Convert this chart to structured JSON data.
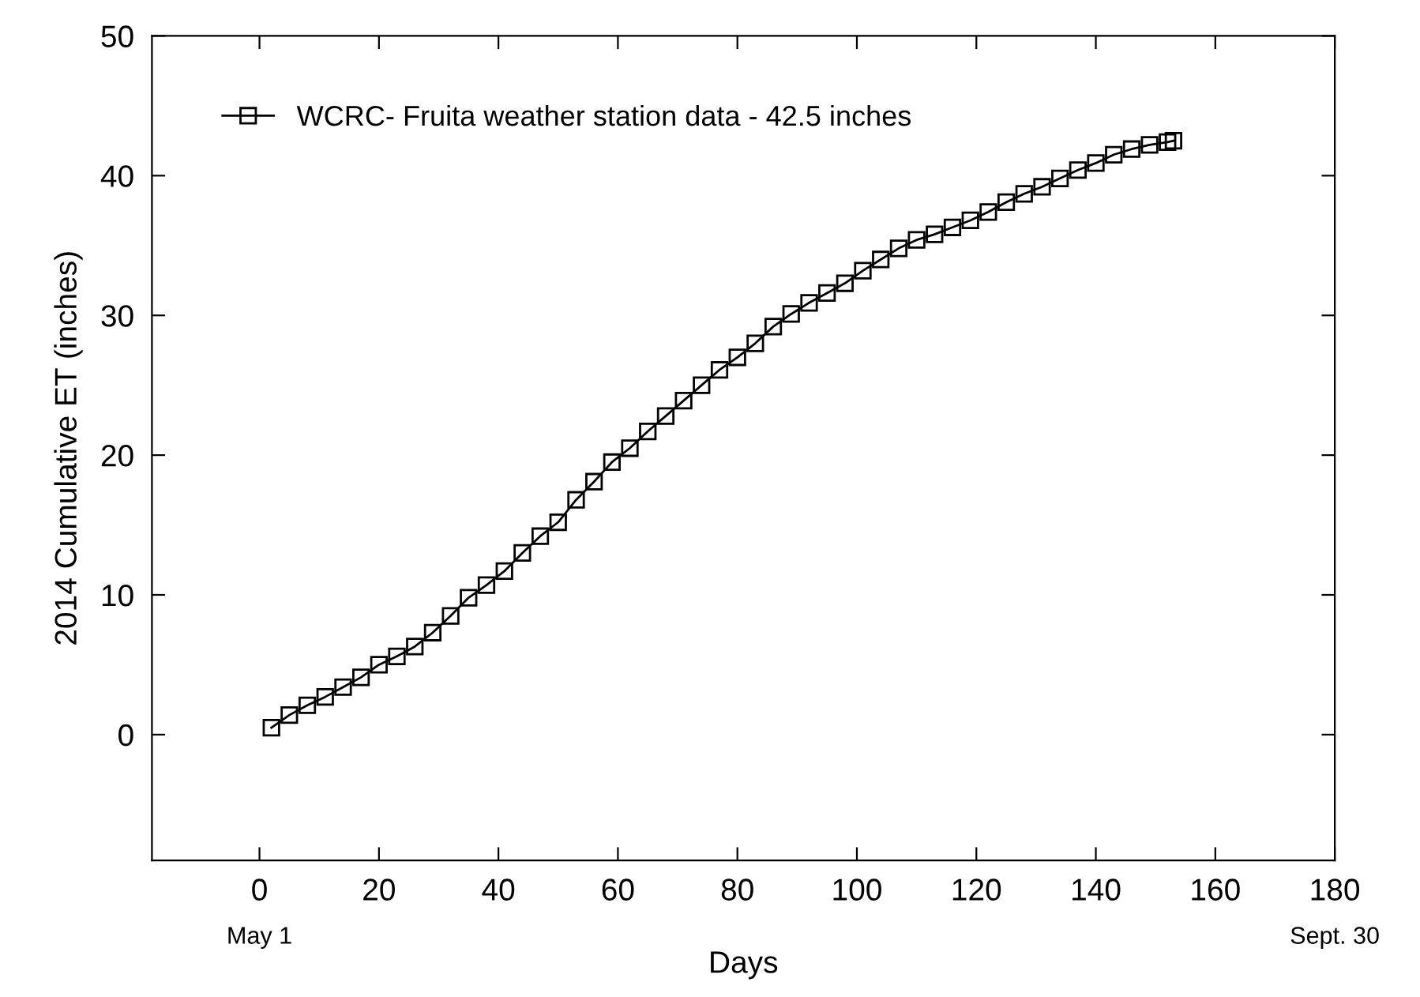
{
  "chart_data": {
    "type": "line",
    "xlabel": "Days",
    "ylabel": "2014 Cumulative ET (inches)",
    "x": [
      2,
      5,
      8,
      11,
      14,
      17,
      20,
      23,
      26,
      29,
      32,
      35,
      38,
      41,
      44,
      47,
      50,
      53,
      56,
      59,
      62,
      65,
      68,
      71,
      74,
      77,
      80,
      83,
      86,
      89,
      92,
      95,
      98,
      101,
      104,
      107,
      110,
      113,
      116,
      119,
      122,
      125,
      128,
      131,
      134,
      137,
      140,
      143,
      146,
      149,
      152,
      153
    ],
    "series": [
      {
        "name": "WCRC- Fruita weather station data - 42.5 inches",
        "color": "#000000",
        "values": [
          0.5,
          1.4,
          2.1,
          2.7,
          3.4,
          4.1,
          5.0,
          5.6,
          6.3,
          7.3,
          8.5,
          9.8,
          10.7,
          11.7,
          13.0,
          14.2,
          15.2,
          16.8,
          18.1,
          19.5,
          20.5,
          21.7,
          22.8,
          23.9,
          25.0,
          26.1,
          27.0,
          28.0,
          29.2,
          30.1,
          30.9,
          31.6,
          32.3,
          33.2,
          34.0,
          34.8,
          35.4,
          35.8,
          36.3,
          36.8,
          37.4,
          38.1,
          38.7,
          39.2,
          39.8,
          40.4,
          40.9,
          41.5,
          41.9,
          42.2,
          42.4,
          42.5
        ]
      }
    ],
    "marker": "square",
    "line_style": "solid",
    "xlim": [
      -18,
      180
    ],
    "xticks": [
      0,
      20,
      40,
      60,
      80,
      100,
      120,
      140,
      160,
      180
    ],
    "ylim": [
      -9,
      50
    ],
    "yticks": [
      0,
      10,
      20,
      30,
      40,
      50
    ],
    "grid": false,
    "legend": "top left",
    "annotations": [
      "May 1",
      "Sept. 30"
    ]
  }
}
